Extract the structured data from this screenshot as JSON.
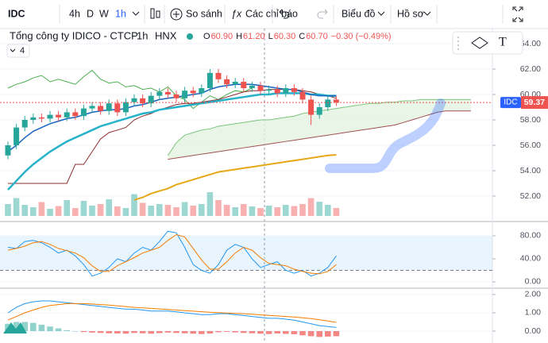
{
  "toolbar": {
    "symbol": "IDC",
    "intervals": [
      "4h",
      "D",
      "W",
      "1h"
    ],
    "compare": "So sánh",
    "indicators": "Các chỉ báo",
    "chart": "Biểu đồ",
    "profile": "Hồ sơ"
  },
  "legend": {
    "name": "Tổng công ty IDICO - CTCP",
    "interval": "1h",
    "exchange": "HNX",
    "ohlc": [
      {
        "key": "O",
        "value": "60.90"
      },
      {
        "key": "H",
        "value": "61.20"
      },
      {
        "key": "L",
        "value": "60.30"
      },
      {
        "key": "C",
        "value": "60.70"
      }
    ],
    "change": "−0.30 (−0.49%)",
    "collapsed_count": "4"
  },
  "price_pane": {
    "ylim": [
      50.06,
      65.19
    ],
    "yticks": [
      {
        "value": 64,
        "label": "64.00"
      },
      {
        "value": 62,
        "label": "62.00"
      },
      {
        "value": 60,
        "label": "60.00"
      },
      {
        "value": 58,
        "label": "58.00"
      },
      {
        "value": 56,
        "label": "56.00"
      },
      {
        "value": 54,
        "label": "54.00"
      },
      {
        "value": 52,
        "label": "52.00"
      }
    ],
    "last_price": {
      "symbol": "IDC",
      "value": 59.37
    },
    "up_color": "#26a69a",
    "down_color": "#ef5350",
    "candles": {
      "open": [
        55.2,
        56.0,
        57.4,
        58.0,
        58.2,
        58.1,
        58.4,
        58.2,
        58.6,
        58.3,
        58.9,
        59.1,
        58.7,
        59.3,
        58.6,
        59.4,
        59.7,
        59.3,
        59.9,
        60.2,
        60.0,
        59.7,
        60.3,
        60.1,
        60.5,
        61.7,
        61.2,
        60.8,
        61.0,
        60.5,
        60.7,
        60.3,
        60.4,
        60.1,
        60.5,
        60.2,
        59.6,
        58.4,
        59.0,
        59.6
      ],
      "high": [
        56.3,
        57.7,
        58.3,
        58.5,
        58.5,
        58.7,
        58.7,
        58.9,
        58.9,
        59.2,
        59.4,
        59.4,
        59.6,
        59.6,
        59.7,
        60.0,
        60.0,
        60.2,
        60.5,
        60.5,
        60.3,
        60.6,
        60.6,
        60.8,
        62.0,
        62.0,
        61.5,
        61.3,
        61.3,
        61.0,
        61.0,
        60.7,
        60.7,
        60.8,
        60.8,
        60.5,
        59.9,
        59.3,
        59.9,
        59.9
      ],
      "low": [
        54.9,
        55.7,
        57.1,
        57.7,
        57.8,
        57.8,
        57.9,
        57.9,
        58.0,
        58.0,
        58.6,
        58.4,
        58.4,
        58.3,
        58.3,
        59.1,
        59.0,
        59.0,
        59.6,
        59.7,
        59.4,
        59.4,
        59.8,
        59.8,
        60.2,
        60.9,
        60.5,
        60.5,
        60.2,
        60.2,
        60.0,
        60.0,
        59.8,
        59.8,
        59.9,
        59.3,
        57.6,
        58.1,
        58.7,
        59.1
      ],
      "close": [
        56.0,
        57.4,
        58.0,
        58.2,
        58.1,
        58.4,
        58.2,
        58.6,
        58.3,
        58.9,
        59.1,
        58.7,
        59.3,
        58.6,
        59.4,
        59.7,
        59.3,
        59.9,
        60.2,
        60.0,
        59.7,
        60.3,
        60.1,
        60.5,
        61.7,
        61.2,
        60.8,
        61.0,
        60.5,
        60.7,
        60.3,
        60.4,
        60.1,
        60.5,
        60.2,
        59.6,
        58.4,
        59.0,
        59.6,
        59.37
      ]
    },
    "volume": [
      30,
      45,
      28,
      22,
      35,
      18,
      25,
      40,
      20,
      38,
      26,
      30,
      42,
      24,
      20,
      55,
      33,
      26,
      30,
      28,
      22,
      35,
      26,
      30,
      60,
      40,
      28,
      22,
      30,
      24,
      20,
      26,
      22,
      28,
      25,
      30,
      45,
      36,
      28,
      20
    ],
    "cloud": {
      "fill": "#e3f2e1",
      "upper_color": "#7cc47c",
      "lower_color": "#a05050",
      "upper": [
        null,
        null,
        null,
        null,
        null,
        null,
        null,
        null,
        null,
        null,
        null,
        null,
        null,
        null,
        null,
        null,
        null,
        null,
        null,
        55.2,
        56.2,
        56.8,
        57.0,
        57.2,
        57.3,
        57.5,
        57.6,
        57.7,
        57.8,
        57.9,
        58.0,
        58.0,
        58.1,
        58.2,
        58.3,
        58.5,
        58.6,
        58.7,
        58.8,
        58.9,
        59.0,
        59.1,
        59.2,
        59.3,
        59.3,
        59.4,
        59.4,
        59.5,
        59.5,
        59.6,
        59.6,
        59.6,
        59.6,
        59.6,
        59.6,
        59.6
      ],
      "lower": [
        null,
        null,
        null,
        null,
        null,
        null,
        null,
        null,
        null,
        null,
        null,
        null,
        null,
        null,
        null,
        null,
        null,
        null,
        null,
        54.9,
        55.0,
        55.1,
        55.2,
        55.3,
        55.4,
        55.5,
        55.6,
        55.7,
        55.8,
        55.9,
        56.0,
        56.1,
        56.2,
        56.3,
        56.4,
        56.5,
        56.6,
        56.7,
        56.8,
        56.9,
        57.0,
        57.1,
        57.2,
        57.3,
        57.4,
        57.5,
        57.6,
        57.8,
        58.0,
        58.2,
        58.4,
        58.6,
        58.7,
        58.7,
        58.7,
        58.7
      ]
    },
    "lines": [
      {
        "color": "#4caf50",
        "width": 1,
        "values": [
          60.5,
          60.8,
          61.0,
          61.3,
          61.5,
          61.0,
          61.2,
          61.0,
          60.8,
          61.4,
          61.9,
          61.2,
          60.9,
          61.0,
          60.6,
          60.7,
          60.4,
          60.5,
          60.2,
          60.6,
          59.9,
          59.6,
          58.9,
          59.4,
          59.9,
          59.6,
          60.0,
          60.3,
          60.2,
          60.5,
          null,
          null,
          null,
          null,
          null,
          null,
          null,
          null,
          null,
          null
        ]
      },
      {
        "color": "#8b2d2d",
        "width": 1,
        "values": [
          53,
          53,
          53,
          53,
          53,
          53,
          53,
          53,
          54.5,
          54.5,
          55.5,
          56.5,
          57,
          57.2,
          57.4,
          58,
          58.3,
          58.5,
          58.8,
          59,
          59.2,
          59.3,
          59.3,
          59.4,
          59.5,
          59.6,
          59.8,
          60,
          60.2,
          60.3,
          60.3,
          60.4,
          60.4,
          60.4,
          60.4,
          60.3,
          60.2,
          60.0,
          59.9,
          59.7
        ]
      },
      {
        "color": "#e6a817",
        "width": 2,
        "values": [
          null,
          null,
          null,
          null,
          null,
          null,
          null,
          null,
          null,
          null,
          null,
          null,
          null,
          null,
          null,
          51.7,
          51.9,
          52.2,
          52.4,
          52.6,
          52.9,
          53.1,
          53.3,
          53.5,
          53.7,
          53.9,
          54.0,
          54.1,
          54.2,
          54.3,
          54.4,
          54.5,
          54.6,
          54.7,
          54.8,
          54.9,
          55.0,
          55.1,
          55.2,
          55.25
        ]
      },
      {
        "color": "#26b3c9",
        "width": 2.5,
        "values": [
          52.5,
          53.2,
          53.9,
          54.5,
          55.0,
          55.5,
          55.9,
          56.3,
          56.6,
          56.9,
          57.2,
          57.5,
          57.7,
          57.9,
          58.1,
          58.3,
          58.5,
          58.6,
          58.8,
          58.9,
          59.0,
          59.1,
          59.2,
          59.3,
          59.4,
          59.5,
          59.6,
          59.7,
          59.8,
          59.9,
          60.0,
          60.0,
          60.1,
          60.1,
          60.1,
          60.1,
          60.0,
          60.0,
          59.9,
          59.9
        ]
      },
      {
        "color": "#1565c0",
        "width": 1.5,
        "values": [
          55.5,
          56.0,
          56.6,
          57.1,
          57.4,
          57.7,
          57.9,
          58.1,
          58.2,
          58.4,
          58.6,
          58.7,
          58.8,
          58.8,
          58.9,
          59.1,
          59.2,
          59.4,
          59.6,
          59.7,
          59.8,
          59.9,
          60.0,
          60.1,
          60.4,
          60.6,
          60.7,
          60.8,
          60.8,
          60.8,
          60.7,
          60.6,
          60.5,
          60.4,
          60.4,
          60.2,
          60.0,
          59.9,
          59.9,
          59.9
        ]
      }
    ]
  },
  "stoch_pane": {
    "ylim": [
      -9.7,
      103.4
    ],
    "band": [
      20,
      80
    ],
    "yticks": [
      {
        "value": 80,
        "label": "80.00"
      },
      {
        "value": 40,
        "label": "40.00"
      },
      {
        "value": 0,
        "label": "0.00"
      }
    ],
    "lines": [
      {
        "color": "#2196f3",
        "values": [
          60,
          58,
          70,
          72,
          68,
          60,
          50,
          55,
          45,
          30,
          10,
          15,
          25,
          40,
          35,
          50,
          60,
          55,
          70,
          88,
          85,
          60,
          30,
          20,
          15,
          30,
          55,
          65,
          60,
          40,
          25,
          30,
          35,
          20,
          15,
          20,
          10,
          15,
          25,
          45
        ]
      },
      {
        "color": "#f57c00",
        "values": [
          55,
          58,
          62,
          68,
          70,
          65,
          58,
          54,
          50,
          42,
          28,
          18,
          18,
          28,
          35,
          42,
          50,
          55,
          60,
          72,
          82,
          78,
          58,
          38,
          22,
          22,
          35,
          50,
          60,
          55,
          42,
          32,
          30,
          28,
          22,
          18,
          15,
          14,
          18,
          30
        ]
      }
    ]
  },
  "macd_pane": {
    "ylim": [
      -0.65,
      2.3
    ],
    "yticks": [
      {
        "value": 2,
        "label": "2.00"
      },
      {
        "value": 1,
        "label": "1.00"
      },
      {
        "value": 0,
        "label": "0.00"
      }
    ],
    "histogram": [
      0.4,
      0.5,
      0.5,
      0.45,
      0.35,
      0.25,
      0.15,
      0.05,
      0,
      -0.05,
      -0.08,
      -0.1,
      -0.12,
      -0.13,
      -0.14,
      -0.1,
      -0.12,
      -0.14,
      -0.11,
      -0.08,
      -0.1,
      -0.12,
      -0.14,
      -0.16,
      -0.13,
      -0.06,
      -0.04,
      -0.07,
      -0.1,
      -0.12,
      -0.14,
      -0.16,
      -0.13,
      -0.15,
      -0.17,
      -0.23,
      -0.28,
      -0.32,
      -0.3,
      -0.28
    ],
    "lines": [
      {
        "color": "#2196f3",
        "values": [
          1.0,
          1.3,
          1.5,
          1.6,
          1.65,
          1.65,
          1.6,
          1.55,
          1.5,
          1.45,
          1.4,
          1.35,
          1.3,
          1.25,
          1.2,
          1.2,
          1.15,
          1.1,
          1.1,
          1.1,
          1.05,
          1.0,
          0.95,
          0.9,
          0.9,
          0.95,
          0.95,
          0.9,
          0.85,
          0.8,
          0.75,
          0.7,
          0.7,
          0.65,
          0.6,
          0.5,
          0.4,
          0.3,
          0.25,
          0.2
        ]
      },
      {
        "color": "#f57c00",
        "values": [
          0.6,
          0.8,
          1.0,
          1.15,
          1.3,
          1.4,
          1.45,
          1.5,
          1.5,
          1.5,
          1.48,
          1.45,
          1.42,
          1.38,
          1.34,
          1.3,
          1.27,
          1.24,
          1.21,
          1.18,
          1.15,
          1.12,
          1.09,
          1.06,
          1.03,
          1.01,
          0.99,
          0.97,
          0.95,
          0.92,
          0.89,
          0.86,
          0.83,
          0.8,
          0.77,
          0.73,
          0.68,
          0.62,
          0.55,
          0.48
        ]
      }
    ]
  }
}
